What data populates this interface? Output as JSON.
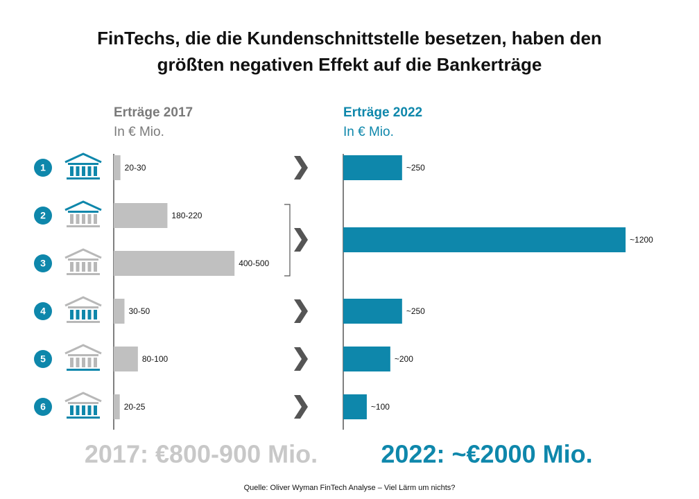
{
  "title": [
    "FinTechs, die die Kundenschnittstelle besetzen, haben den",
    "größten negativen Effekt auf die Bankerträge"
  ],
  "source": "Quelle: Oliver Wyman FinTech Analyse – Viel Lärm um nichts?",
  "chart_data": [
    {
      "type": "bar",
      "orientation": "horizontal",
      "header": "Erträge 2017",
      "subheader": "In € Mio.",
      "categories": [
        "1",
        "2",
        "3",
        "4",
        "5",
        "6"
      ],
      "values": [
        [
          20,
          30
        ],
        [
          180,
          220
        ],
        [
          400,
          500
        ],
        [
          30,
          50
        ],
        [
          80,
          100
        ],
        [
          20,
          25
        ]
      ],
      "value_labels": [
        "20-30",
        "180-220",
        "400-500",
        "30-50",
        "80-100",
        "20-25"
      ],
      "color": "#c0c0c0",
      "xlim": [
        0,
        620
      ],
      "total": "2017: €800-900 Mio."
    },
    {
      "type": "bar",
      "orientation": "horizontal",
      "header": "Erträge 2022",
      "subheader": "In € Mio.",
      "values": [
        250,
        1200,
        250,
        200,
        100
      ],
      "value_labels": [
        "~250",
        "~1200",
        "~250",
        "~200",
        "~100"
      ],
      "color": "#0e87ab",
      "xlim": [
        0,
        1400
      ],
      "total": "2022: ~€2000 Mio."
    }
  ]
}
